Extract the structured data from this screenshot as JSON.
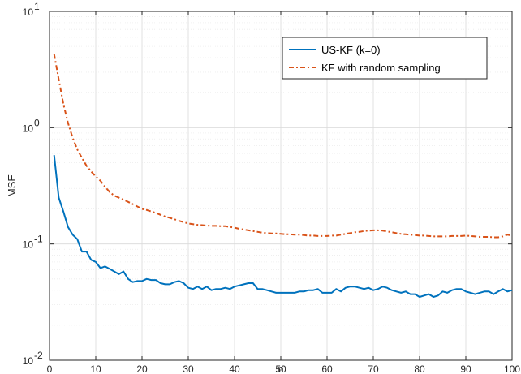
{
  "chart_data": {
    "type": "line",
    "title": "",
    "xlabel": "n",
    "ylabel": "MSE",
    "xlim": [
      0,
      100
    ],
    "ylim": [
      0.01,
      10
    ],
    "yscale": "log",
    "grid": true,
    "minor_grid": true,
    "legend_position": "top-right",
    "x_ticks": [
      0,
      10,
      20,
      30,
      40,
      50,
      60,
      70,
      80,
      90,
      100
    ],
    "x_tick_labels": [
      "0",
      "10",
      "20",
      "30",
      "40",
      "50",
      "60",
      "70",
      "80",
      "90",
      "100"
    ],
    "y_ticks": [
      0.01,
      0.1,
      1,
      10
    ],
    "y_tick_labels": [
      {
        "base": "10",
        "exp": "-2"
      },
      {
        "base": "10",
        "exp": "-1"
      },
      {
        "base": "10",
        "exp": "0"
      },
      {
        "base": "10",
        "exp": "1"
      }
    ],
    "x": [
      1,
      2,
      3,
      4,
      5,
      6,
      7,
      8,
      9,
      10,
      11,
      12,
      13,
      14,
      15,
      16,
      17,
      18,
      19,
      20,
      21,
      22,
      23,
      24,
      25,
      26,
      27,
      28,
      29,
      30,
      31,
      32,
      33,
      34,
      35,
      36,
      37,
      38,
      39,
      40,
      41,
      42,
      43,
      44,
      45,
      46,
      47,
      48,
      49,
      50,
      51,
      52,
      53,
      54,
      55,
      56,
      57,
      58,
      59,
      60,
      61,
      62,
      63,
      64,
      65,
      66,
      67,
      68,
      69,
      70,
      71,
      72,
      73,
      74,
      75,
      76,
      77,
      78,
      79,
      80,
      81,
      82,
      83,
      84,
      85,
      86,
      87,
      88,
      89,
      90,
      91,
      92,
      93,
      94,
      95,
      96,
      97,
      98,
      99,
      100
    ],
    "series": [
      {
        "name": "US-KF (k=0)",
        "color": "#0072BD",
        "style": "solid",
        "values": [
          0.58,
          0.25,
          0.19,
          0.14,
          0.12,
          0.11,
          0.086,
          0.086,
          0.073,
          0.07,
          0.062,
          0.064,
          0.061,
          0.058,
          0.055,
          0.058,
          0.05,
          0.047,
          0.048,
          0.048,
          0.05,
          0.049,
          0.049,
          0.046,
          0.045,
          0.045,
          0.047,
          0.048,
          0.046,
          0.042,
          0.041,
          0.043,
          0.041,
          0.043,
          0.04,
          0.041,
          0.041,
          0.042,
          0.041,
          0.043,
          0.044,
          0.045,
          0.046,
          0.046,
          0.041,
          0.041,
          0.04,
          0.039,
          0.038,
          0.038,
          0.038,
          0.038,
          0.038,
          0.039,
          0.039,
          0.04,
          0.04,
          0.041,
          0.038,
          0.038,
          0.038,
          0.041,
          0.039,
          0.042,
          0.043,
          0.043,
          0.042,
          0.041,
          0.042,
          0.04,
          0.041,
          0.043,
          0.042,
          0.04,
          0.039,
          0.038,
          0.039,
          0.037,
          0.037,
          0.035,
          0.036,
          0.037,
          0.035,
          0.036,
          0.039,
          0.038,
          0.04,
          0.041,
          0.041,
          0.039,
          0.038,
          0.037,
          0.038,
          0.039,
          0.039,
          0.037,
          0.039,
          0.041,
          0.039,
          0.04
        ]
      },
      {
        "name": "KF with random sampling",
        "color": "#D95319",
        "style": "dashdot",
        "values": [
          4.3,
          2.6,
          1.6,
          1.1,
          0.82,
          0.65,
          0.55,
          0.47,
          0.42,
          0.38,
          0.35,
          0.31,
          0.28,
          0.26,
          0.25,
          0.24,
          0.23,
          0.22,
          0.21,
          0.2,
          0.196,
          0.19,
          0.185,
          0.178,
          0.172,
          0.168,
          0.163,
          0.158,
          0.154,
          0.15,
          0.148,
          0.146,
          0.145,
          0.144,
          0.143,
          0.143,
          0.142,
          0.142,
          0.14,
          0.138,
          0.135,
          0.133,
          0.131,
          0.129,
          0.127,
          0.125,
          0.124,
          0.123,
          0.123,
          0.122,
          0.121,
          0.121,
          0.12,
          0.12,
          0.119,
          0.118,
          0.118,
          0.117,
          0.117,
          0.117,
          0.118,
          0.118,
          0.12,
          0.122,
          0.124,
          0.126,
          0.127,
          0.129,
          0.13,
          0.131,
          0.131,
          0.13,
          0.128,
          0.126,
          0.124,
          0.122,
          0.121,
          0.12,
          0.119,
          0.118,
          0.118,
          0.117,
          0.116,
          0.116,
          0.116,
          0.116,
          0.117,
          0.117,
          0.117,
          0.118,
          0.117,
          0.116,
          0.115,
          0.115,
          0.115,
          0.114,
          0.114,
          0.116,
          0.12,
          0.118
        ]
      }
    ]
  }
}
